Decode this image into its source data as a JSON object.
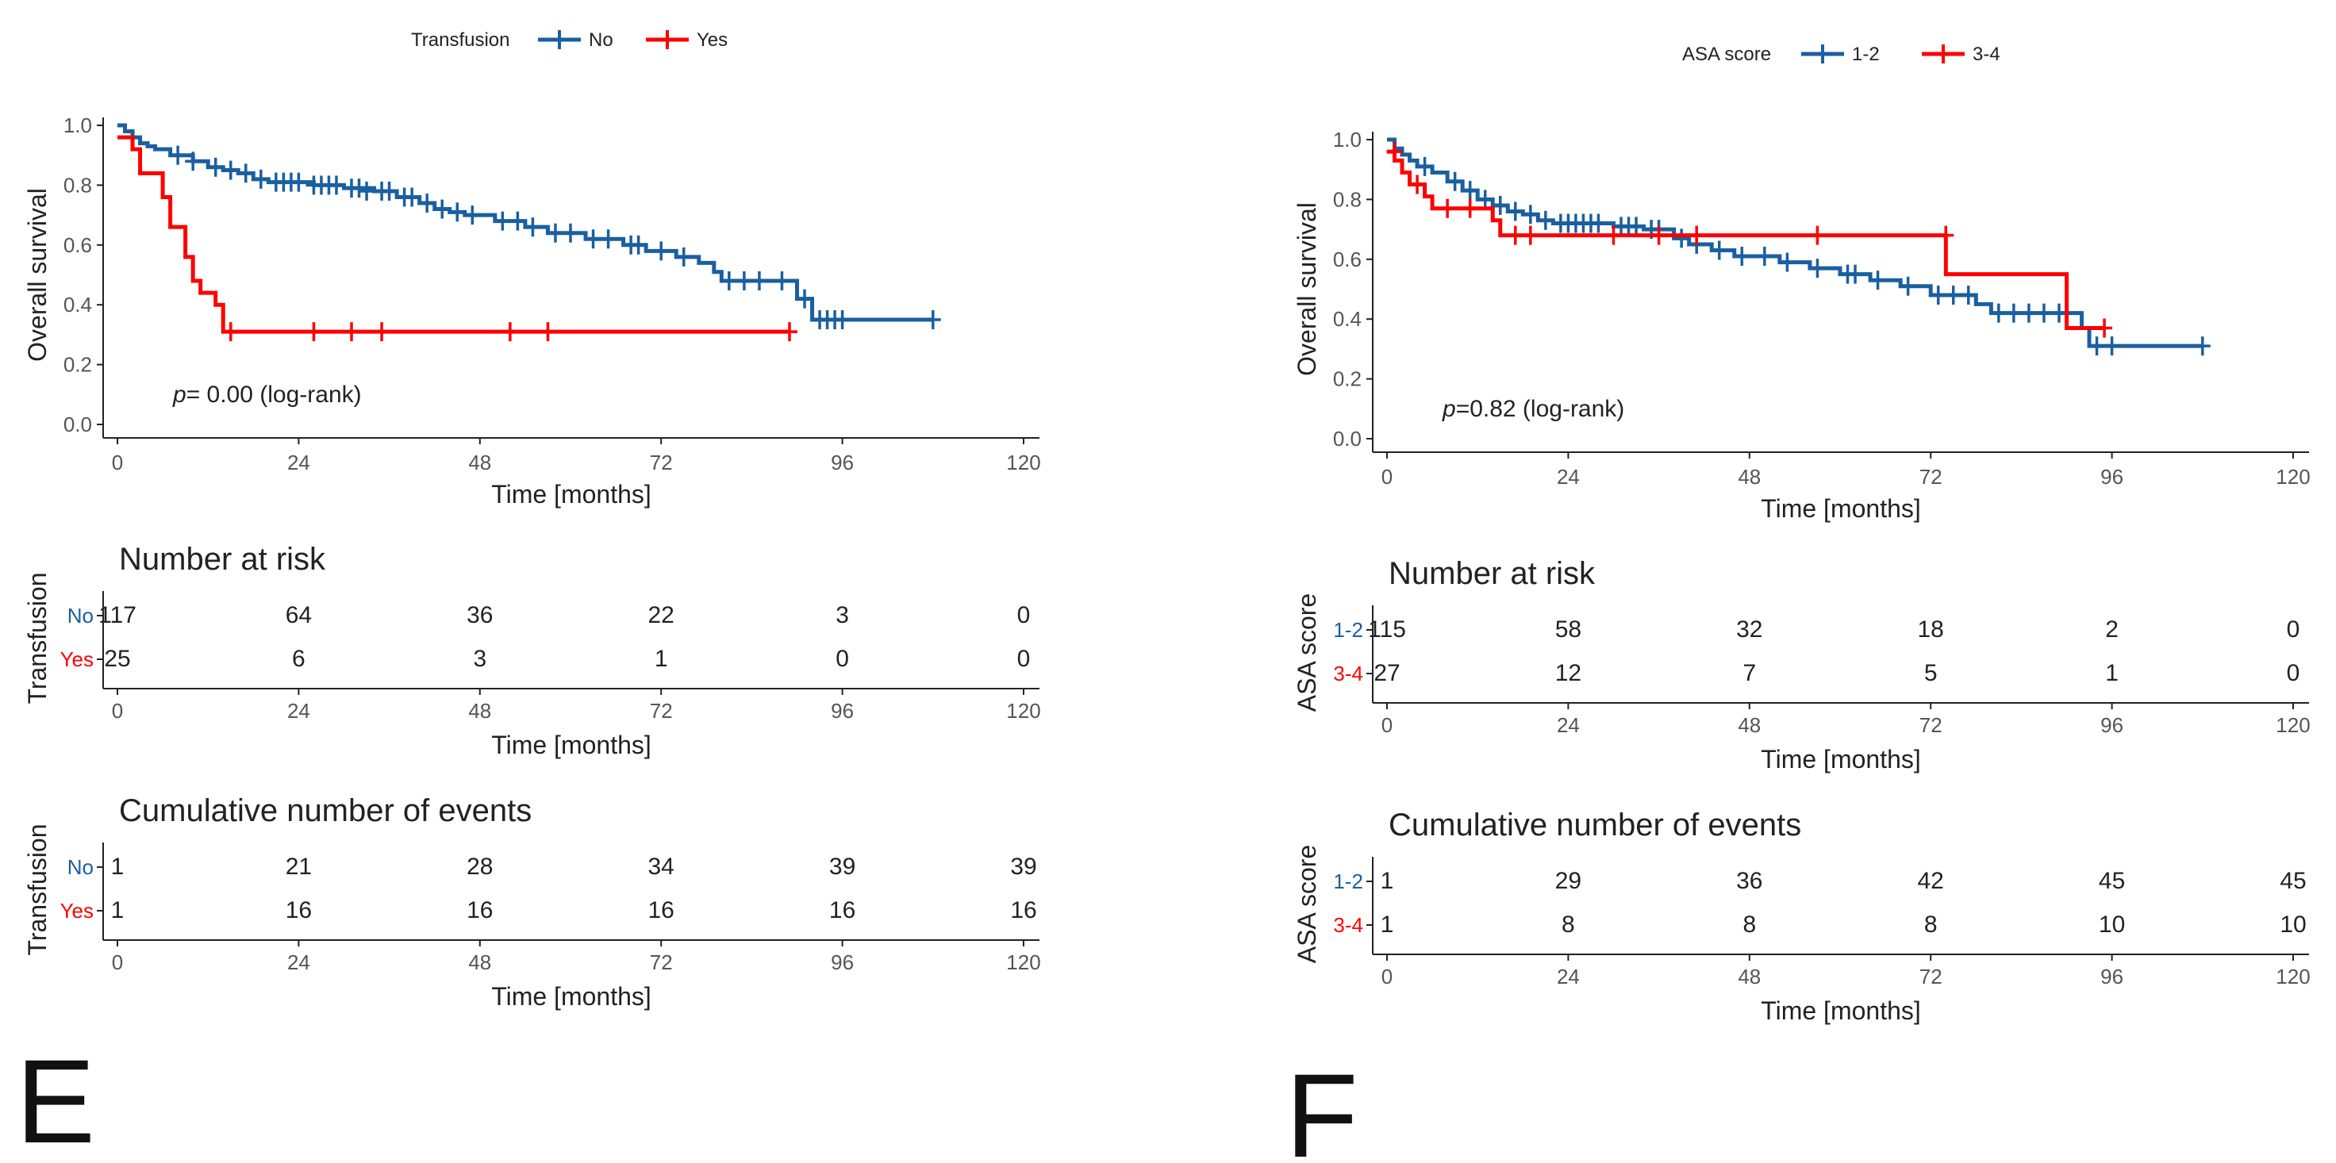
{
  "colors": {
    "blue": "#1a5fa0",
    "red": "#ff0000",
    "axis": "#222222",
    "tick_text": "#555555"
  },
  "chart_data": [
    {
      "type": "line",
      "subtype": "kaplan-meier",
      "panel_letter": "E",
      "legend": {
        "title": "Transfusion",
        "entries": [
          "No",
          "Yes"
        ],
        "position": "top"
      },
      "ylabel": "Overall survival",
      "xlabel": "Time [months]",
      "xlim": [
        0,
        120
      ],
      "ylim": [
        0,
        1.0
      ],
      "xticks": [
        "0",
        "24",
        "48",
        "72",
        "96",
        "120"
      ],
      "yticks": [
        "0.0",
        "0.2",
        "0.4",
        "0.6",
        "0.8",
        "1.0"
      ],
      "pvalue_italic": "p",
      "pvalue_rest": "= 0.00 (log-rank)",
      "series": [
        {
          "name": "No",
          "steps": [
            [
              0,
              1.0
            ],
            [
              1,
              0.98
            ],
            [
              2,
              0.96
            ],
            [
              3,
              0.94
            ],
            [
              4,
              0.93
            ],
            [
              5,
              0.92
            ],
            [
              7,
              0.9
            ],
            [
              10,
              0.88
            ],
            [
              12,
              0.86
            ],
            [
              14,
              0.85
            ],
            [
              16,
              0.84
            ],
            [
              18,
              0.82
            ],
            [
              20,
              0.81
            ],
            [
              26,
              0.8
            ],
            [
              30,
              0.79
            ],
            [
              34,
              0.78
            ],
            [
              37,
              0.76
            ],
            [
              40,
              0.74
            ],
            [
              42,
              0.72
            ],
            [
              44,
              0.71
            ],
            [
              46,
              0.7
            ],
            [
              50,
              0.68
            ],
            [
              54,
              0.66
            ],
            [
              57,
              0.64
            ],
            [
              62,
              0.62
            ],
            [
              67,
              0.6
            ],
            [
              70,
              0.58
            ],
            [
              74,
              0.56
            ],
            [
              77,
              0.54
            ],
            [
              79,
              0.51
            ],
            [
              80,
              0.48
            ],
            [
              90,
              0.42
            ],
            [
              92,
              0.35
            ],
            [
              108,
              0.35
            ]
          ],
          "censors": [
            [
              8,
              0.9
            ],
            [
              10,
              0.88
            ],
            [
              13,
              0.86
            ],
            [
              15,
              0.85
            ],
            [
              17,
              0.84
            ],
            [
              19,
              0.82
            ],
            [
              21,
              0.81
            ],
            [
              22,
              0.81
            ],
            [
              23,
              0.81
            ],
            [
              24,
              0.81
            ],
            [
              26,
              0.8
            ],
            [
              27,
              0.8
            ],
            [
              28,
              0.8
            ],
            [
              29,
              0.8
            ],
            [
              31,
              0.79
            ],
            [
              32,
              0.79
            ],
            [
              33,
              0.78
            ],
            [
              35,
              0.78
            ],
            [
              36,
              0.78
            ],
            [
              38,
              0.76
            ],
            [
              39,
              0.76
            ],
            [
              41,
              0.74
            ],
            [
              43,
              0.72
            ],
            [
              45,
              0.71
            ],
            [
              47,
              0.7
            ],
            [
              51,
              0.68
            ],
            [
              53,
              0.68
            ],
            [
              55,
              0.66
            ],
            [
              58,
              0.64
            ],
            [
              60,
              0.64
            ],
            [
              63,
              0.62
            ],
            [
              65,
              0.62
            ],
            [
              68,
              0.6
            ],
            [
              69,
              0.6
            ],
            [
              72,
              0.58
            ],
            [
              75,
              0.56
            ],
            [
              81,
              0.48
            ],
            [
              83,
              0.48
            ],
            [
              85,
              0.48
            ],
            [
              88,
              0.48
            ],
            [
              91,
              0.42
            ],
            [
              93,
              0.35
            ],
            [
              94,
              0.35
            ],
            [
              95,
              0.35
            ],
            [
              96,
              0.35
            ],
            [
              108,
              0.35
            ]
          ]
        },
        {
          "name": "Yes",
          "steps": [
            [
              0,
              0.96
            ],
            [
              2,
              0.92
            ],
            [
              3,
              0.84
            ],
            [
              6,
              0.76
            ],
            [
              7,
              0.66
            ],
            [
              9,
              0.56
            ],
            [
              10,
              0.48
            ],
            [
              11,
              0.44
            ],
            [
              13,
              0.4
            ],
            [
              14,
              0.31
            ],
            [
              89,
              0.31
            ]
          ],
          "censors": [
            [
              15,
              0.31
            ],
            [
              26,
              0.31
            ],
            [
              31,
              0.31
            ],
            [
              35,
              0.31
            ],
            [
              52,
              0.31
            ],
            [
              57,
              0.31
            ],
            [
              89,
              0.31
            ]
          ]
        }
      ],
      "risk_table": {
        "title": "Number at risk",
        "ylabel": "Transfusion",
        "rows": [
          {
            "label": "No",
            "values": [
              "117",
              "64",
              "36",
              "22",
              "3",
              "0"
            ]
          },
          {
            "label": "Yes",
            "values": [
              "25",
              "6",
              "3",
              "1",
              "0",
              "0"
            ]
          }
        ]
      },
      "events_table": {
        "title": "Cumulative number of events",
        "ylabel": "Transfusion",
        "rows": [
          {
            "label": "No",
            "values": [
              "1",
              "21",
              "28",
              "34",
              "39",
              "39"
            ]
          },
          {
            "label": "Yes",
            "values": [
              "1",
              "16",
              "16",
              "16",
              "16",
              "16"
            ]
          }
        ]
      }
    },
    {
      "type": "line",
      "subtype": "kaplan-meier",
      "panel_letter": "F",
      "legend": {
        "title": "ASA score",
        "entries": [
          "1-2",
          "3-4"
        ],
        "position": "top"
      },
      "ylabel": "Overall survival",
      "xlabel": "Time [months]",
      "xlim": [
        0,
        120
      ],
      "ylim": [
        0,
        1.0
      ],
      "xticks": [
        "0",
        "24",
        "48",
        "72",
        "96",
        "120"
      ],
      "yticks": [
        "0.0",
        "0.2",
        "0.4",
        "0.6",
        "0.8",
        "1.0"
      ],
      "pvalue_italic": "p",
      "pvalue_rest": "=0.82 (log-rank)",
      "series": [
        {
          "name": "1-2",
          "steps": [
            [
              0,
              1.0
            ],
            [
              1,
              0.97
            ],
            [
              2,
              0.95
            ],
            [
              3,
              0.93
            ],
            [
              4,
              0.91
            ],
            [
              6,
              0.89
            ],
            [
              8,
              0.86
            ],
            [
              10,
              0.83
            ],
            [
              12,
              0.8
            ],
            [
              14,
              0.78
            ],
            [
              16,
              0.76
            ],
            [
              18,
              0.75
            ],
            [
              20,
              0.73
            ],
            [
              22,
              0.72
            ],
            [
              30,
              0.71
            ],
            [
              34,
              0.7
            ],
            [
              38,
              0.67
            ],
            [
              40,
              0.65
            ],
            [
              43,
              0.63
            ],
            [
              46,
              0.61
            ],
            [
              52,
              0.59
            ],
            [
              56,
              0.57
            ],
            [
              60,
              0.55
            ],
            [
              64,
              0.53
            ],
            [
              68,
              0.51
            ],
            [
              72,
              0.48
            ],
            [
              78,
              0.45
            ],
            [
              80,
              0.42
            ],
            [
              92,
              0.37
            ],
            [
              93,
              0.31
            ],
            [
              108,
              0.31
            ]
          ],
          "censors": [
            [
              5,
              0.91
            ],
            [
              9,
              0.86
            ],
            [
              11,
              0.83
            ],
            [
              13,
              0.8
            ],
            [
              15,
              0.78
            ],
            [
              17,
              0.76
            ],
            [
              19,
              0.75
            ],
            [
              21,
              0.73
            ],
            [
              23,
              0.72
            ],
            [
              24,
              0.72
            ],
            [
              25,
              0.72
            ],
            [
              26,
              0.72
            ],
            [
              27,
              0.72
            ],
            [
              28,
              0.72
            ],
            [
              31,
              0.71
            ],
            [
              32,
              0.71
            ],
            [
              33,
              0.71
            ],
            [
              35,
              0.7
            ],
            [
              36,
              0.7
            ],
            [
              39,
              0.67
            ],
            [
              41,
              0.65
            ],
            [
              44,
              0.63
            ],
            [
              47,
              0.61
            ],
            [
              50,
              0.61
            ],
            [
              53,
              0.59
            ],
            [
              57,
              0.57
            ],
            [
              61,
              0.55
            ],
            [
              62,
              0.55
            ],
            [
              65,
              0.53
            ],
            [
              69,
              0.51
            ],
            [
              73,
              0.48
            ],
            [
              75,
              0.48
            ],
            [
              77,
              0.48
            ],
            [
              81,
              0.42
            ],
            [
              83,
              0.42
            ],
            [
              85,
              0.42
            ],
            [
              87,
              0.42
            ],
            [
              89,
              0.42
            ],
            [
              94,
              0.31
            ],
            [
              96,
              0.31
            ],
            [
              108,
              0.31
            ]
          ]
        },
        {
          "name": "3-4",
          "steps": [
            [
              0,
              0.96
            ],
            [
              1,
              0.93
            ],
            [
              2,
              0.89
            ],
            [
              3,
              0.85
            ],
            [
              5,
              0.81
            ],
            [
              6,
              0.77
            ],
            [
              14,
              0.73
            ],
            [
              15,
              0.68
            ],
            [
              74,
              0.68
            ],
            [
              74.01,
              0.55
            ],
            [
              90,
              0.55
            ],
            [
              90.01,
              0.37
            ],
            [
              95,
              0.37
            ]
          ],
          "censors": [
            [
              1,
              0.96
            ],
            [
              4,
              0.85
            ],
            [
              8,
              0.77
            ],
            [
              11,
              0.77
            ],
            [
              17,
              0.68
            ],
            [
              19,
              0.68
            ],
            [
              30,
              0.68
            ],
            [
              36,
              0.68
            ],
            [
              41,
              0.68
            ],
            [
              57,
              0.68
            ],
            [
              74,
              0.68
            ],
            [
              95,
              0.37
            ]
          ]
        }
      ],
      "risk_table": {
        "title": "Number at risk",
        "ylabel": "ASA score",
        "rows": [
          {
            "label": "1-2",
            "values": [
              "115",
              "58",
              "32",
              "18",
              "2",
              "0"
            ]
          },
          {
            "label": "3-4",
            "values": [
              "27",
              "12",
              "7",
              "5",
              "1",
              "0"
            ]
          }
        ]
      },
      "events_table": {
        "title": "Cumulative number of events",
        "ylabel": "ASA score",
        "rows": [
          {
            "label": "1-2",
            "values": [
              "1",
              "29",
              "36",
              "42",
              "45",
              "45"
            ]
          },
          {
            "label": "3-4",
            "values": [
              "1",
              "8",
              "8",
              "8",
              "10",
              "10"
            ]
          }
        ]
      }
    }
  ]
}
